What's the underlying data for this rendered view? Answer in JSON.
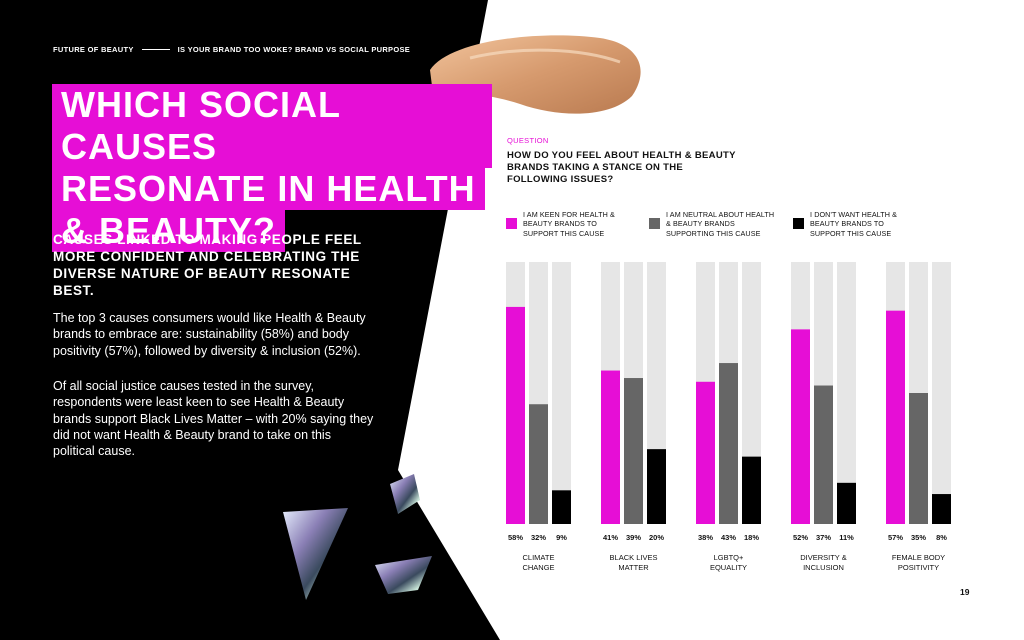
{
  "header": {
    "section": "FUTURE OF BEAUTY",
    "topic": "IS YOUR BRAND TOO WOKE? BRAND VS SOCIAL PURPOSE"
  },
  "title_lines": [
    "WHICH SOCIAL CAUSES",
    "RESONATE IN HEALTH",
    "& BEAUTY?"
  ],
  "subhead": "CAUSES LINKED TO MAKING PEOPLE FEEL MORE CONFIDENT AND CELEBRATING THE DIVERSE NATURE OF BEAUTY RESONATE BEST.",
  "paragraphs": [
    "The top 3 causes consumers would like Health & Beauty brands to embrace are: sustainability (58%) and body positivity (57%), followed by diversity & inclusion (52%).",
    "Of all social justice causes tested in the survey, respondents were least keen to see Health & Beauty brands support Black Lives Matter – with 20% saying they did not want Health & Beauty brand to take on this political cause."
  ],
  "question_label": "QUESTION",
  "question": "HOW DO YOU FEEL ABOUT HEALTH & BEAUTY BRANDS TAKING A STANCE ON THE FOLLOWING ISSUES?",
  "page_number": "19",
  "colors": {
    "magenta": "#e60ed6",
    "grey": "#666666",
    "black": "#000000",
    "track": "#e6e6e6"
  },
  "chart_data": {
    "type": "bar",
    "categories": [
      "CLIMATE CHANGE",
      "BLACK LIVES MATTER",
      "LGBTQ+ EQUALITY",
      "DIVERSITY & INCLUSION",
      "FEMALE BODY POSITIVITY"
    ],
    "series": [
      {
        "name": "I AM KEEN FOR HEALTH & BEAUTY BRANDS TO SUPPORT THIS CAUSE",
        "color": "#e60ed6",
        "values": [
          58,
          41,
          38,
          52,
          57
        ],
        "labels": [
          "58%",
          "41%",
          "38%",
          "52%",
          "57%"
        ]
      },
      {
        "name": "I AM NEUTRAL ABOUT HEALTH & BEAUTY BRANDS SUPPORTING THIS CAUSE",
        "color": "#666666",
        "values": [
          32,
          39,
          43,
          37,
          35
        ],
        "labels": [
          "32%",
          "39%",
          "43%",
          "37%",
          "35%"
        ]
      },
      {
        "name": "I DON'T WANT HEALTH & BEAUTY BRANDS TO SUPPORT THIS CAUSE",
        "color": "#000000",
        "values": [
          9,
          20,
          18,
          11,
          8
        ],
        "labels": [
          "9%",
          "20%",
          "18%",
          "11%",
          "8%"
        ]
      }
    ],
    "ylim": [
      0,
      70
    ],
    "legend_position": "top",
    "grid": false
  }
}
